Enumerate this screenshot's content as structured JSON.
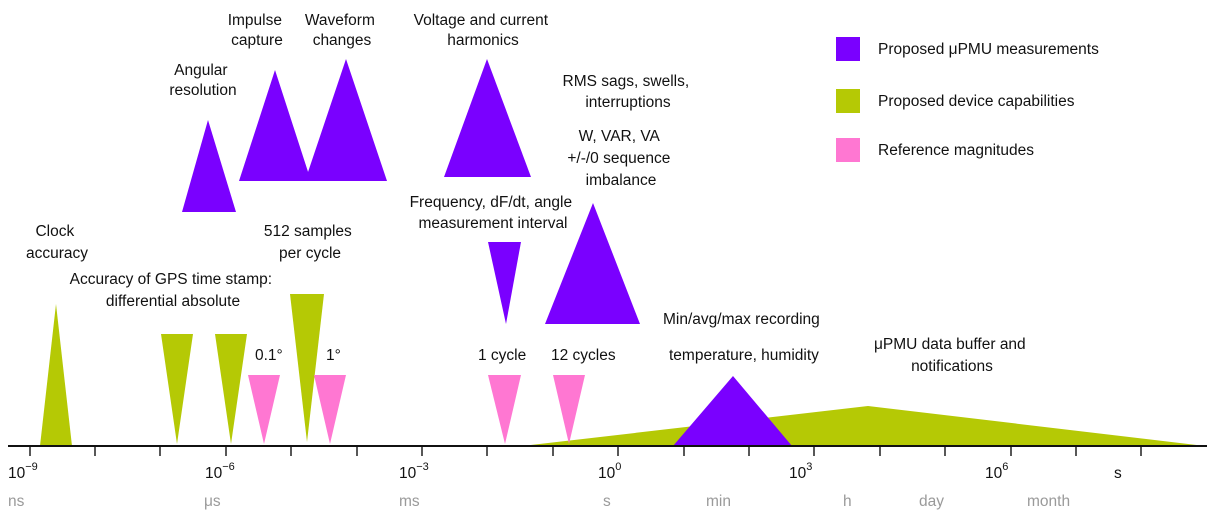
{
  "colors": {
    "purple": "#7a00ff",
    "green": "#b5c905",
    "pink": "#ff77d2",
    "axis": "#111111",
    "unit_text": "#9a9a9a"
  },
  "legend": [
    {
      "label": "Proposed μPMU measurements",
      "color_key": "purple"
    },
    {
      "label": "Proposed device capabilities",
      "color_key": "green"
    },
    {
      "label": "Reference magnitudes",
      "color_key": "pink"
    }
  ],
  "axis": {
    "ticks": [
      {
        "base": "10",
        "exp": "−9"
      },
      {
        "base": "10",
        "exp": "−6"
      },
      {
        "base": "10",
        "exp": "−3"
      },
      {
        "base": "10",
        "exp": "0"
      },
      {
        "base": "10",
        "exp": "3"
      },
      {
        "base": "10",
        "exp": "6"
      }
    ],
    "unit_symbol": "s",
    "time_units": [
      "ns",
      "μs",
      "ms",
      "s",
      "min",
      "h",
      "day",
      "month"
    ]
  },
  "annotations": {
    "impulse": [
      "Impulse",
      "capture"
    ],
    "waveform": [
      "Waveform",
      "changes"
    ],
    "harmonics": [
      "Voltage and current",
      "harmonics"
    ],
    "angular": [
      "Angular",
      "resolution"
    ],
    "rms": [
      "RMS sags, swells,",
      "interruptions"
    ],
    "power": [
      "W, VAR, VA",
      "+/-/0 sequence",
      "imbalance"
    ],
    "frequency": [
      "Frequency, dF/dt, angle",
      "measurement interval"
    ],
    "samples": [
      "512 samples",
      "per cycle"
    ],
    "clock": [
      "Clock",
      "accuracy"
    ],
    "gps": [
      "Accuracy of GPS time stamp:",
      "differential absolute"
    ],
    "minavg": [
      "Min/avg/max recording"
    ],
    "temp": [
      "temperature, humidity"
    ],
    "buffer": [
      "μPMU data buffer and",
      "notifications"
    ],
    "deg01": "0.1°",
    "deg1": "1°",
    "cycle1": "1 cycle",
    "cycle12": "12 cycles"
  }
}
